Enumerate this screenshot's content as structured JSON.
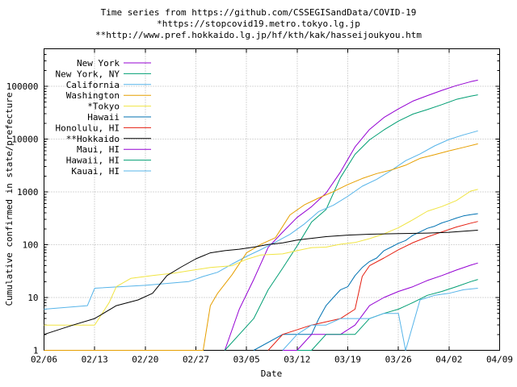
{
  "title": {
    "line1": "Time series from https://github.com/CSSEGISandData/COVID-19",
    "line2": "*https://stopcovid19.metro.tokyo.lg.jp",
    "line3": "**http://www.pref.hokkaido.lg.jp/hf/kth/kak/hasseijoukyou.htm"
  },
  "axes": {
    "ylabel": "Cumulative confirmed in state/prefecture",
    "xlabel": "Date"
  },
  "chart_data": {
    "type": "line",
    "y_scale": "log",
    "ylim": [
      1,
      500000
    ],
    "x_range": [
      "02/06",
      "04/09"
    ],
    "grid": true,
    "legend_position": "top-left",
    "background": "#ffffff",
    "x_tick_labels": [
      "02/06",
      "02/13",
      "02/20",
      "02/27",
      "03/05",
      "03/12",
      "03/19",
      "03/26",
      "04/02",
      "04/09"
    ],
    "y_tick_values": [
      1,
      10,
      100,
      1000,
      10000,
      100000
    ],
    "y_tick_labels": [
      "1",
      "10",
      "100",
      "1000",
      "10000",
      "100000"
    ],
    "series": [
      {
        "name": "New York",
        "color": "#9400d3",
        "points": [
          [
            "03/02",
            1
          ],
          [
            "03/04",
            6
          ],
          [
            "03/06",
            22
          ],
          [
            "03/08",
            89
          ],
          [
            "03/10",
            173
          ],
          [
            "03/12",
            328
          ],
          [
            "03/14",
            525
          ],
          [
            "03/16",
            950
          ],
          [
            "03/18",
            2382
          ],
          [
            "03/20",
            7102
          ],
          [
            "03/22",
            15168
          ],
          [
            "03/24",
            25665
          ],
          [
            "03/26",
            37258
          ],
          [
            "03/28",
            52318
          ],
          [
            "03/30",
            66497
          ],
          [
            "04/01",
            83712
          ],
          [
            "04/03",
            102863
          ],
          [
            "04/05",
            122031
          ],
          [
            "04/06",
            130689
          ]
        ]
      },
      {
        "name": "New York, NY",
        "color": "#009e73",
        "points": [
          [
            "03/02",
            1
          ],
          [
            "03/04",
            2
          ],
          [
            "03/06",
            4
          ],
          [
            "03/08",
            14
          ],
          [
            "03/10",
            36
          ],
          [
            "03/12",
            95
          ],
          [
            "03/14",
            269
          ],
          [
            "03/16",
            463
          ],
          [
            "03/18",
            1871
          ],
          [
            "03/20",
            5151
          ],
          [
            "03/22",
            9654
          ],
          [
            "03/24",
            14904
          ],
          [
            "03/26",
            21873
          ],
          [
            "03/28",
            29766
          ],
          [
            "03/30",
            36221
          ],
          [
            "04/01",
            44915
          ],
          [
            "04/03",
            56289
          ],
          [
            "04/05",
            64955
          ],
          [
            "04/06",
            68776
          ]
        ]
      },
      {
        "name": "California",
        "color": "#56b4e9",
        "points": [
          [
            "02/06",
            6
          ],
          [
            "02/12",
            7
          ],
          [
            "02/13",
            15
          ],
          [
            "02/20",
            17
          ],
          [
            "02/26",
            20
          ],
          [
            "02/28",
            25
          ],
          [
            "03/01",
            30
          ],
          [
            "03/03",
            43
          ],
          [
            "03/05",
            60
          ],
          [
            "03/07",
            81
          ],
          [
            "03/09",
            112
          ],
          [
            "03/11",
            157
          ],
          [
            "03/13",
            247
          ],
          [
            "03/15",
            426
          ],
          [
            "03/17",
            557
          ],
          [
            "03/19",
            824
          ],
          [
            "03/21",
            1279
          ],
          [
            "03/23",
            1733
          ],
          [
            "03/25",
            2535
          ],
          [
            "03/27",
            3899
          ],
          [
            "03/29",
            5231
          ],
          [
            "03/31",
            7421
          ],
          [
            "04/02",
            9816
          ],
          [
            "04/04",
            12026
          ],
          [
            "04/06",
            14336
          ]
        ]
      },
      {
        "name": "Washington",
        "color": "#e69f00",
        "points": [
          [
            "02/06",
            1
          ],
          [
            "02/28",
            1
          ],
          [
            "02/29",
            7
          ],
          [
            "03/01",
            12
          ],
          [
            "03/03",
            27
          ],
          [
            "03/05",
            70
          ],
          [
            "03/07",
            102
          ],
          [
            "03/09",
            136
          ],
          [
            "03/11",
            366
          ],
          [
            "03/13",
            568
          ],
          [
            "03/15",
            769
          ],
          [
            "03/17",
            1012
          ],
          [
            "03/19",
            1376
          ],
          [
            "03/21",
            1793
          ],
          [
            "03/23",
            2221
          ],
          [
            "03/25",
            2591
          ],
          [
            "03/27",
            3207
          ],
          [
            "03/29",
            4310
          ],
          [
            "03/31",
            5063
          ],
          [
            "04/02",
            5984
          ],
          [
            "04/04",
            6966
          ],
          [
            "04/06",
            8131
          ]
        ]
      },
      {
        "name": "*Tokyo",
        "color": "#f0e442",
        "points": [
          [
            "02/06",
            3
          ],
          [
            "02/13",
            3
          ],
          [
            "02/15",
            8
          ],
          [
            "02/16",
            16
          ],
          [
            "02/18",
            23
          ],
          [
            "02/21",
            26
          ],
          [
            "02/24",
            29
          ],
          [
            "02/26",
            32
          ],
          [
            "02/29",
            37
          ],
          [
            "03/03",
            40
          ],
          [
            "03/05",
            53
          ],
          [
            "03/07",
            64
          ],
          [
            "03/10",
            67
          ],
          [
            "03/12",
            77
          ],
          [
            "03/14",
            88
          ],
          [
            "03/16",
            90
          ],
          [
            "03/18",
            102
          ],
          [
            "03/20",
            110
          ],
          [
            "03/22",
            130
          ],
          [
            "03/24",
            160
          ],
          [
            "03/26",
            210
          ],
          [
            "03/28",
            296
          ],
          [
            "03/30",
            430
          ],
          [
            "04/01",
            527
          ],
          [
            "04/03",
            684
          ],
          [
            "04/05",
            1034
          ],
          [
            "04/06",
            1116
          ]
        ]
      },
      {
        "name": "Hawaii",
        "color": "#0072b2",
        "points": [
          [
            "03/06",
            1
          ],
          [
            "03/10",
            2
          ],
          [
            "03/14",
            2
          ],
          [
            "03/15",
            4
          ],
          [
            "03/16",
            7
          ],
          [
            "03/17",
            10
          ],
          [
            "03/18",
            14
          ],
          [
            "03/19",
            16
          ],
          [
            "03/20",
            26
          ],
          [
            "03/21",
            37
          ],
          [
            "03/22",
            48
          ],
          [
            "03/23",
            56
          ],
          [
            "03/24",
            77
          ],
          [
            "03/25",
            90
          ],
          [
            "03/26",
            106
          ],
          [
            "03/27",
            120
          ],
          [
            "03/28",
            151
          ],
          [
            "03/29",
            175
          ],
          [
            "03/30",
            204
          ],
          [
            "03/31",
            224
          ],
          [
            "04/01",
            258
          ],
          [
            "04/02",
            285
          ],
          [
            "04/03",
            319
          ],
          [
            "04/04",
            351
          ],
          [
            "04/05",
            371
          ],
          [
            "04/06",
            387
          ]
        ]
      },
      {
        "name": "Honolulu, HI",
        "color": "#e51e10",
        "points": [
          [
            "03/08",
            1
          ],
          [
            "03/10",
            2
          ],
          [
            "03/14",
            3
          ],
          [
            "03/18",
            4
          ],
          [
            "03/20",
            6
          ],
          [
            "03/21",
            25
          ],
          [
            "03/22",
            40
          ],
          [
            "03/24",
            56
          ],
          [
            "03/26",
            80
          ],
          [
            "03/28",
            109
          ],
          [
            "03/30",
            140
          ],
          [
            "04/01",
            174
          ],
          [
            "04/03",
            216
          ],
          [
            "04/05",
            256
          ],
          [
            "04/06",
            275
          ]
        ]
      },
      {
        "name": "**Hokkaido",
        "color": "#000000",
        "points": [
          [
            "02/06",
            2
          ],
          [
            "02/10",
            3
          ],
          [
            "02/13",
            4
          ],
          [
            "02/16",
            7
          ],
          [
            "02/19",
            9
          ],
          [
            "02/21",
            12
          ],
          [
            "02/23",
            26
          ],
          [
            "02/25",
            38
          ],
          [
            "02/27",
            54
          ],
          [
            "02/29",
            70
          ],
          [
            "03/02",
            77
          ],
          [
            "03/04",
            82
          ],
          [
            "03/06",
            90
          ],
          [
            "03/08",
            101
          ],
          [
            "03/10",
            108
          ],
          [
            "03/12",
            122
          ],
          [
            "03/14",
            132
          ],
          [
            "03/16",
            142
          ],
          [
            "03/19",
            152
          ],
          [
            "03/22",
            158
          ],
          [
            "03/26",
            162
          ],
          [
            "03/30",
            166
          ],
          [
            "04/02",
            172
          ],
          [
            "04/06",
            188
          ]
        ]
      },
      {
        "name": "Maui, HI",
        "color": "#9400d3",
        "points": [
          [
            "03/10",
            1
          ],
          [
            "03/12",
            1
          ],
          [
            "03/14",
            2
          ],
          [
            "03/16",
            2
          ],
          [
            "03/18",
            2
          ],
          [
            "03/20",
            3
          ],
          [
            "03/22",
            7
          ],
          [
            "03/24",
            10
          ],
          [
            "03/26",
            13
          ],
          [
            "03/28",
            16
          ],
          [
            "03/30",
            21
          ],
          [
            "04/01",
            26
          ],
          [
            "04/03",
            33
          ],
          [
            "04/05",
            41
          ],
          [
            "04/06",
            45
          ]
        ]
      },
      {
        "name": "Hawaii, HI",
        "color": "#009e73",
        "points": [
          [
            "03/12",
            1
          ],
          [
            "03/14",
            1
          ],
          [
            "03/16",
            2
          ],
          [
            "03/18",
            2
          ],
          [
            "03/20",
            2
          ],
          [
            "03/22",
            4
          ],
          [
            "03/24",
            5
          ],
          [
            "03/26",
            6
          ],
          [
            "03/28",
            8
          ],
          [
            "03/30",
            11
          ],
          [
            "04/01",
            13
          ],
          [
            "04/03",
            16
          ],
          [
            "04/05",
            20
          ],
          [
            "04/06",
            22
          ]
        ]
      },
      {
        "name": "Kauai, HI",
        "color": "#56b4e9",
        "points": [
          [
            "03/10",
            1
          ],
          [
            "03/12",
            2
          ],
          [
            "03/14",
            3
          ],
          [
            "03/16",
            3
          ],
          [
            "03/18",
            4
          ],
          [
            "03/22",
            4
          ],
          [
            "03/24",
            5
          ],
          [
            "03/26",
            5
          ],
          [
            "03/27",
            1
          ],
          [
            "03/29",
            9
          ],
          [
            "03/31",
            11
          ],
          [
            "04/02",
            12
          ],
          [
            "04/04",
            14
          ],
          [
            "04/06",
            15
          ]
        ]
      }
    ]
  }
}
